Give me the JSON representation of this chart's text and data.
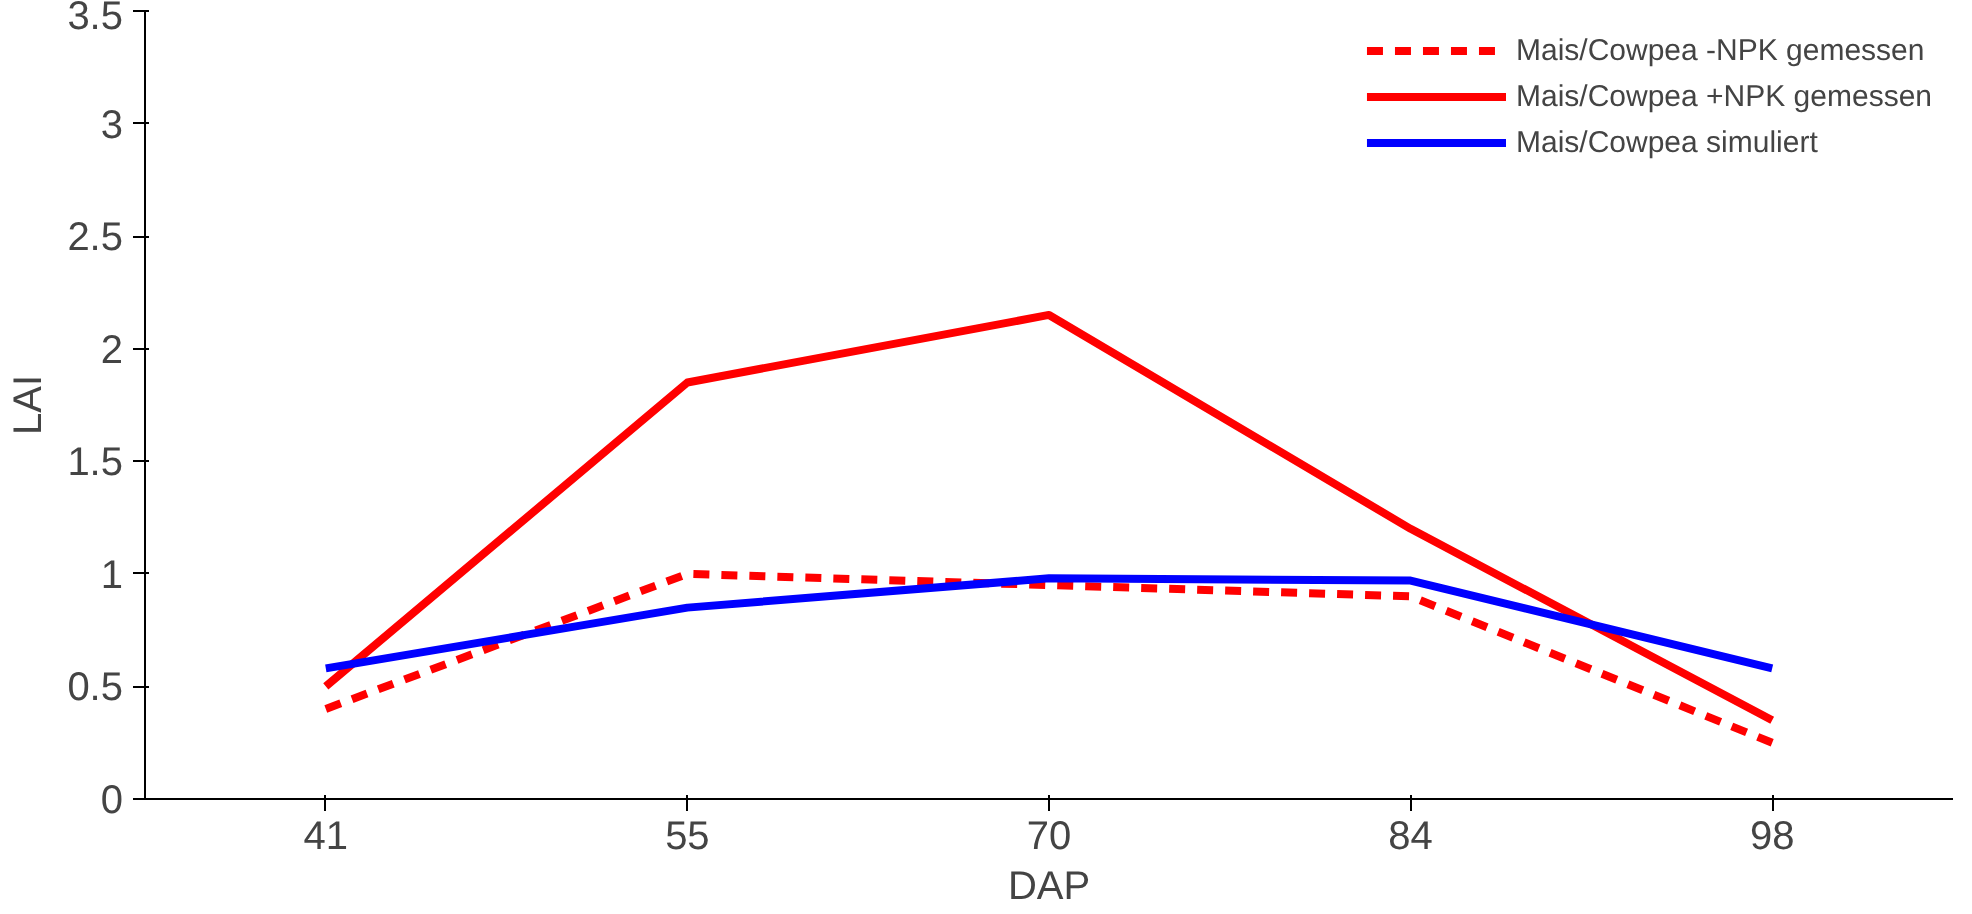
{
  "chart_data": {
    "type": "line",
    "xlabel": "DAP",
    "ylabel": "LAI",
    "categories": [
      "41",
      "55",
      "70",
      "84",
      "98"
    ],
    "ylim": [
      0,
      3.5
    ],
    "yticks": [
      0,
      0.5,
      1,
      1.5,
      2,
      2.5,
      3,
      3.5
    ],
    "grid": false,
    "legend": "top right",
    "marker": "none",
    "series": [
      {
        "name": "Mais/Cowpea -NPK gemessen",
        "color": "#ff0000",
        "line_style": "dashed",
        "values": [
          0.4,
          1.0,
          0.95,
          0.9,
          0.25
        ]
      },
      {
        "name": "Mais/Cowpea +NPK gemessen",
        "color": "#ff0000",
        "line_style": "solid",
        "values": [
          0.5,
          1.85,
          2.15,
          1.2,
          0.35
        ]
      },
      {
        "name": "Mais/Cowpea simuliert",
        "color": "#0000ff",
        "line_style": "solid",
        "values": [
          0.58,
          0.85,
          0.98,
          0.97,
          0.58
        ]
      }
    ]
  }
}
